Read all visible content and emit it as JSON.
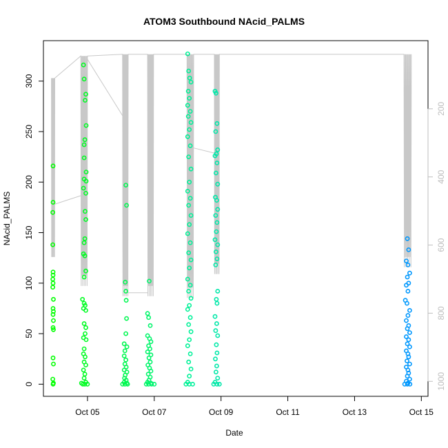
{
  "chart_data": {
    "type": "scatter",
    "title": "ATOM3 Southbound NAcid_PALMS",
    "xlabel": "Date",
    "ylabel": "NAcid_PALMS",
    "x_ticks": [
      "Oct 05",
      "Oct 07",
      "Oct 09",
      "Oct 11",
      "Oct 13",
      "Oct 15"
    ],
    "x_tick_values": [
      5,
      7,
      9,
      11,
      13,
      15
    ],
    "xlim": [
      3.68,
      15.2
    ],
    "ylim": [
      -12,
      340
    ],
    "y_ticks": [
      0,
      50,
      100,
      150,
      200,
      250,
      300
    ],
    "y2_ticks": [
      200,
      400,
      600,
      800,
      1000
    ],
    "y2lim": [
      0,
      1044
    ],
    "y2_reversed": true,
    "points": [
      [
        3.97,
        216
      ],
      [
        3.97,
        180
      ],
      [
        3.96,
        170
      ],
      [
        3.96,
        138
      ],
      [
        3.97,
        111
      ],
      [
        3.97,
        108
      ],
      [
        3.96,
        104
      ],
      [
        3.97,
        100
      ],
      [
        3.96,
        96
      ],
      [
        3.98,
        84
      ],
      [
        3.97,
        75
      ],
      [
        3.98,
        72
      ],
      [
        3.97,
        69
      ],
      [
        3.98,
        63
      ],
      [
        3.97,
        56
      ],
      [
        3.98,
        54
      ],
      [
        3.97,
        26
      ],
      [
        3.98,
        20
      ],
      [
        3.96,
        5
      ],
      [
        3.98,
        1
      ],
      [
        3.97,
        0
      ],
      [
        4.88,
        316
      ],
      [
        4.9,
        302
      ],
      [
        4.95,
        287
      ],
      [
        4.93,
        281
      ],
      [
        4.96,
        256
      ],
      [
        4.92,
        242
      ],
      [
        4.9,
        237
      ],
      [
        4.9,
        224
      ],
      [
        4.96,
        210
      ],
      [
        4.9,
        203
      ],
      [
        4.96,
        201
      ],
      [
        4.88,
        194
      ],
      [
        4.95,
        189
      ],
      [
        4.93,
        171
      ],
      [
        4.95,
        163
      ],
      [
        4.92,
        144
      ],
      [
        4.9,
        140
      ],
      [
        4.88,
        129
      ],
      [
        4.92,
        127
      ],
      [
        4.95,
        112
      ],
      [
        4.9,
        106
      ],
      [
        4.85,
        84
      ],
      [
        4.9,
        80
      ],
      [
        4.93,
        78
      ],
      [
        4.88,
        75
      ],
      [
        4.95,
        73
      ],
      [
        4.9,
        60
      ],
      [
        4.95,
        56
      ],
      [
        4.93,
        50
      ],
      [
        4.88,
        46
      ],
      [
        4.96,
        44
      ],
      [
        4.9,
        35
      ],
      [
        4.88,
        30
      ],
      [
        4.93,
        27
      ],
      [
        4.9,
        22
      ],
      [
        4.95,
        19
      ],
      [
        4.88,
        14
      ],
      [
        4.92,
        10
      ],
      [
        4.9,
        6
      ],
      [
        4.82,
        1
      ],
      [
        4.86,
        0
      ],
      [
        4.95,
        2
      ],
      [
        5.0,
        0
      ],
      [
        4.92,
        0
      ],
      [
        6.15,
        197
      ],
      [
        6.17,
        177
      ],
      [
        6.13,
        101
      ],
      [
        6.15,
        92
      ],
      [
        6.16,
        83
      ],
      [
        6.17,
        65
      ],
      [
        6.15,
        50
      ],
      [
        6.1,
        40
      ],
      [
        6.18,
        37
      ],
      [
        6.12,
        33
      ],
      [
        6.1,
        28
      ],
      [
        6.15,
        24
      ],
      [
        6.12,
        20
      ],
      [
        6.16,
        17
      ],
      [
        6.1,
        14
      ],
      [
        6.18,
        12
      ],
      [
        6.13,
        9
      ],
      [
        6.11,
        6
      ],
      [
        6.16,
        4
      ],
      [
        6.1,
        2
      ],
      [
        6.18,
        1
      ],
      [
        6.05,
        0
      ],
      [
        6.12,
        0
      ],
      [
        6.2,
        0
      ],
      [
        6.85,
        102
      ],
      [
        6.8,
        70
      ],
      [
        6.83,
        66
      ],
      [
        6.88,
        58
      ],
      [
        6.8,
        48
      ],
      [
        6.86,
        45
      ],
      [
        6.9,
        42
      ],
      [
        6.83,
        38
      ],
      [
        6.87,
        35
      ],
      [
        6.8,
        32
      ],
      [
        6.9,
        29
      ],
      [
        6.84,
        26
      ],
      [
        6.88,
        22
      ],
      [
        6.81,
        19
      ],
      [
        6.86,
        16
      ],
      [
        6.9,
        13
      ],
      [
        6.82,
        10
      ],
      [
        6.88,
        7
      ],
      [
        6.84,
        4
      ],
      [
        6.8,
        2
      ],
      [
        6.9,
        1
      ],
      [
        6.76,
        0
      ],
      [
        6.83,
        0
      ],
      [
        6.92,
        0
      ],
      [
        7.0,
        0
      ],
      [
        8.0,
        327
      ],
      [
        8.03,
        310
      ],
      [
        8.06,
        303
      ],
      [
        8.1,
        299
      ],
      [
        8.02,
        290
      ],
      [
        8.05,
        283
      ],
      [
        8.0,
        276
      ],
      [
        8.08,
        270
      ],
      [
        8.02,
        265
      ],
      [
        8.1,
        259
      ],
      [
        8.05,
        252
      ],
      [
        8.0,
        245
      ],
      [
        8.08,
        236
      ],
      [
        8.03,
        225
      ],
      [
        8.1,
        213
      ],
      [
        8.05,
        200
      ],
      [
        8.0,
        191
      ],
      [
        8.08,
        184
      ],
      [
        8.03,
        177
      ],
      [
        8.1,
        167
      ],
      [
        8.05,
        158
      ],
      [
        8.0,
        149
      ],
      [
        8.08,
        140
      ],
      [
        8.03,
        130
      ],
      [
        8.1,
        123
      ],
      [
        8.05,
        115
      ],
      [
        8.0,
        104
      ],
      [
        8.08,
        98
      ],
      [
        8.03,
        92
      ],
      [
        8.1,
        85
      ],
      [
        8.05,
        78
      ],
      [
        8.0,
        74
      ],
      [
        8.08,
        66
      ],
      [
        8.03,
        59
      ],
      [
        8.1,
        52
      ],
      [
        8.05,
        44
      ],
      [
        8.0,
        38
      ],
      [
        8.08,
        30
      ],
      [
        8.03,
        22
      ],
      [
        8.1,
        15
      ],
      [
        8.05,
        8
      ],
      [
        8.0,
        2
      ],
      [
        7.95,
        0
      ],
      [
        8.05,
        0
      ],
      [
        8.15,
        0
      ],
      [
        8.82,
        290
      ],
      [
        8.85,
        288
      ],
      [
        8.88,
        258
      ],
      [
        8.84,
        250
      ],
      [
        8.9,
        232
      ],
      [
        8.86,
        228
      ],
      [
        8.82,
        226
      ],
      [
        8.88,
        219
      ],
      [
        8.85,
        209
      ],
      [
        8.9,
        198
      ],
      [
        8.83,
        185
      ],
      [
        8.87,
        182
      ],
      [
        8.9,
        173
      ],
      [
        8.84,
        167
      ],
      [
        8.88,
        160
      ],
      [
        8.86,
        151
      ],
      [
        8.82,
        143
      ],
      [
        8.9,
        138
      ],
      [
        8.85,
        131
      ],
      [
        8.88,
        124
      ],
      [
        8.84,
        118
      ],
      [
        8.9,
        92
      ],
      [
        8.86,
        84
      ],
      [
        8.88,
        80
      ],
      [
        8.82,
        67
      ],
      [
        8.87,
        60
      ],
      [
        8.84,
        53
      ],
      [
        8.9,
        48
      ],
      [
        8.86,
        39
      ],
      [
        8.88,
        31
      ],
      [
        8.83,
        25
      ],
      [
        8.87,
        18
      ],
      [
        8.85,
        12
      ],
      [
        8.9,
        6
      ],
      [
        8.82,
        2
      ],
      [
        8.88,
        0
      ],
      [
        8.78,
        0
      ],
      [
        8.95,
        0
      ],
      [
        14.58,
        144
      ],
      [
        14.62,
        133
      ],
      [
        14.55,
        122
      ],
      [
        14.6,
        118
      ],
      [
        14.65,
        110
      ],
      [
        14.58,
        106
      ],
      [
        14.62,
        100
      ],
      [
        14.55,
        98
      ],
      [
        14.6,
        92
      ],
      [
        14.52,
        83
      ],
      [
        14.57,
        80
      ],
      [
        14.65,
        73
      ],
      [
        14.6,
        68
      ],
      [
        14.55,
        63
      ],
      [
        14.62,
        58
      ],
      [
        14.58,
        55
      ],
      [
        14.65,
        51
      ],
      [
        14.55,
        47
      ],
      [
        14.62,
        44
      ],
      [
        14.58,
        40
      ],
      [
        14.65,
        37
      ],
      [
        14.55,
        33
      ],
      [
        14.6,
        30
      ],
      [
        14.62,
        27
      ],
      [
        14.57,
        23
      ],
      [
        14.65,
        20
      ],
      [
        14.55,
        17
      ],
      [
        14.6,
        14
      ],
      [
        14.62,
        11
      ],
      [
        14.58,
        8
      ],
      [
        14.65,
        5
      ],
      [
        14.55,
        3
      ],
      [
        14.6,
        1
      ],
      [
        14.5,
        0
      ],
      [
        14.58,
        0
      ],
      [
        14.66,
        0
      ]
    ],
    "colors_note": "points colored by time: green (Oct 04) through teal to blue (Oct 15)",
    "line_color": "#c8c8c8",
    "color_start": "#00ff00",
    "color_mid": "#00f0a0",
    "color_end": "#0096ff",
    "grid": false,
    "legend": "none"
  }
}
